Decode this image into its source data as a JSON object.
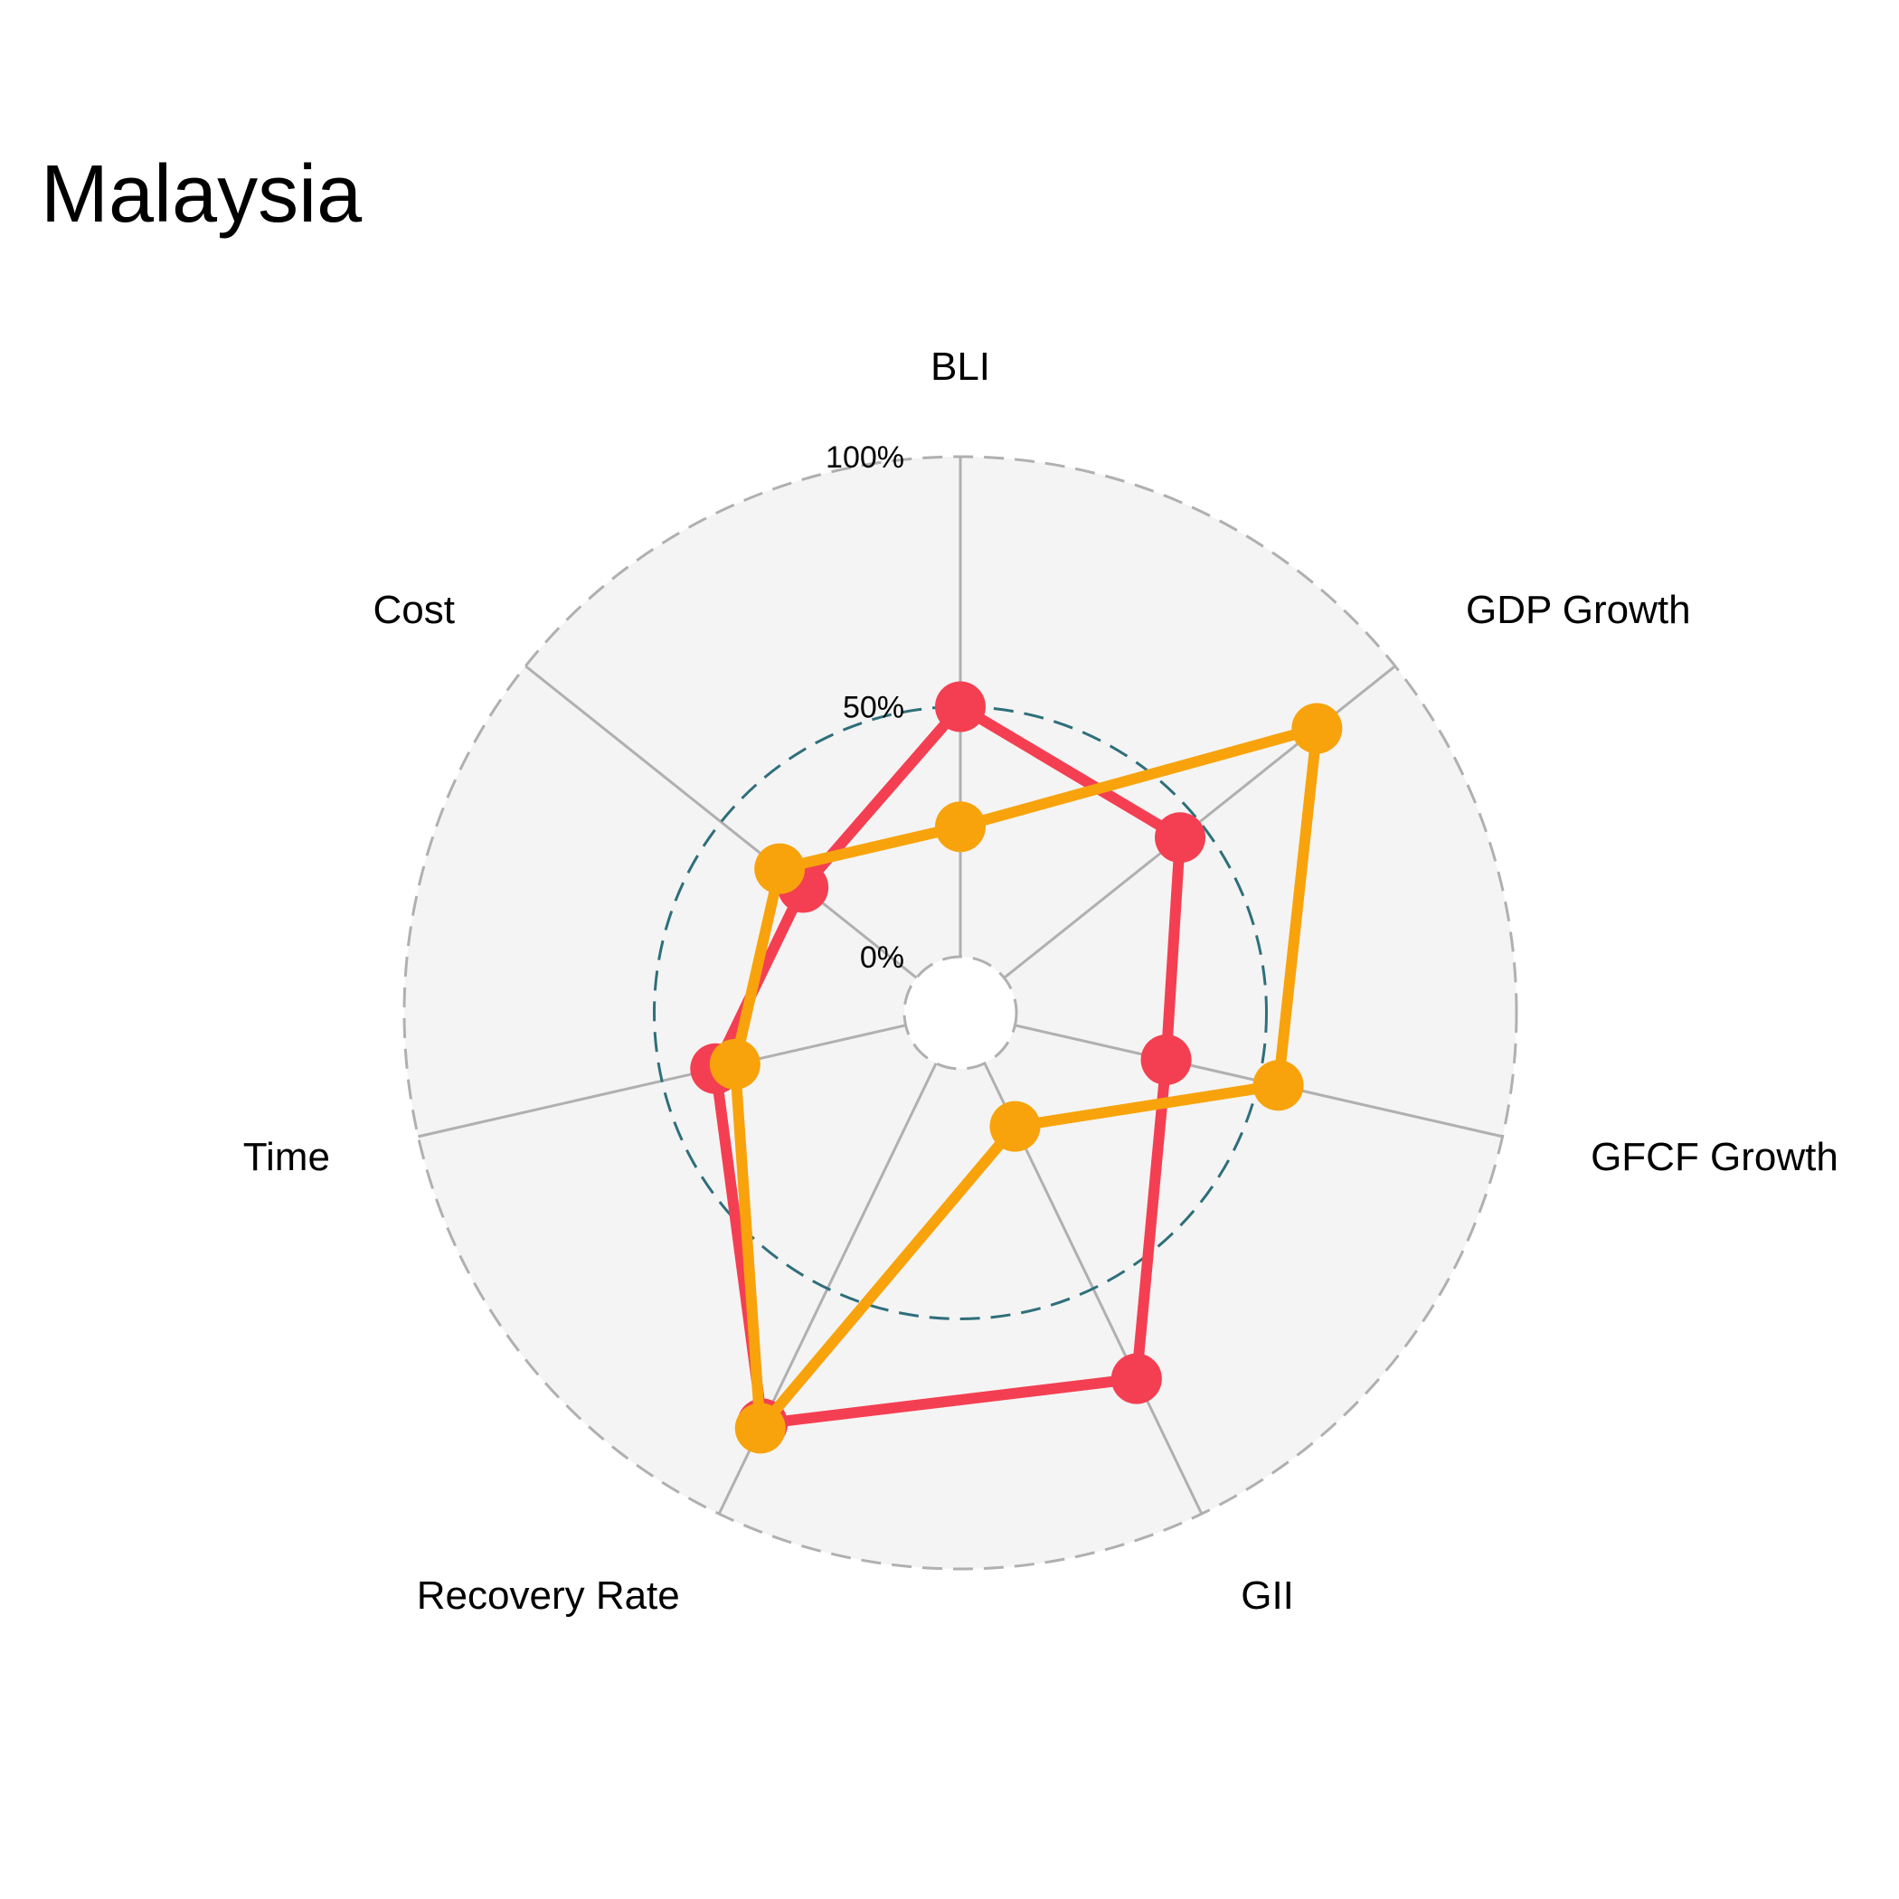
{
  "chart_data": {
    "type": "radar",
    "title": "Malaysia",
    "axes": [
      "BLI",
      "GDP Growth",
      "GFCF Growth",
      "GII",
      "Recovery Rate",
      "Time",
      "Cost"
    ],
    "grid_labels": [
      "0%",
      "50%",
      "100%"
    ],
    "range": [
      0,
      1
    ],
    "series": [
      {
        "color": "#f43f52",
        "values": [
          0.5,
          0.45,
          0.31,
          0.7,
          0.8,
          0.39,
          0.29
        ]
      },
      {
        "color": "#f8a30c",
        "values": [
          0.26,
          0.8,
          0.54,
          0.14,
          0.81,
          0.35,
          0.35
        ]
      }
    ],
    "grid": true,
    "colors": {
      "panel": "#f4f4f4",
      "spoke": "#b0b0b0",
      "outer_ring": "#b0b0b0",
      "mid_ring": "#2e6f7a",
      "center": "#ffffff"
    }
  }
}
